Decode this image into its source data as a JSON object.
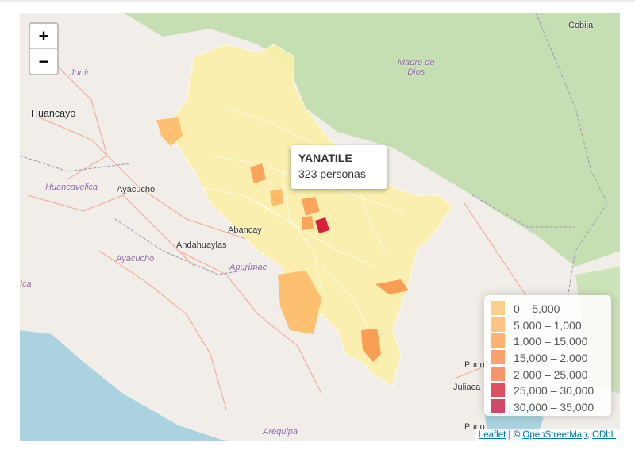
{
  "zoom": {
    "in_label": "+",
    "out_label": "−"
  },
  "places": {
    "cobija": "Cobija",
    "huancayo": "Huancayo",
    "ayacucho_city": "Ayacucho",
    "abancay": "Abancay",
    "andahuaylas": "Andahuaylas",
    "juliaca": "Juliaca",
    "puno": "Puno",
    "puno_city": "Puno"
  },
  "regions": {
    "junin": "Junín",
    "madre_de_dios": "Madre de\nDios",
    "huancavelica": "Huancavelica",
    "ayacucho": "Ayacucho",
    "apurimac": "Apurímac",
    "arequipa": "Arequipa",
    "ica": "Ica"
  },
  "popup": {
    "name": "YANATILE",
    "value": "323 personas"
  },
  "legend": {
    "items": [
      {
        "label": "0 – 5,000",
        "color": "#fec36f"
      },
      {
        "label": "5,000 – 1,000",
        "color": "#feb460"
      },
      {
        "label": "1,000 – 15,000",
        "color": "#fd9e51"
      },
      {
        "label": "15,000 – 2,000",
        "color": "#fb8a48"
      },
      {
        "label": "2,000 – 25,000",
        "color": "#f57a45"
      },
      {
        "label": "25,000 – 30,000",
        "color": "#d8203a"
      },
      {
        "label": "30,000 – 35,000",
        "color": "#c41d46"
      }
    ]
  },
  "attribution": {
    "leaflet": "Leaflet",
    "sep": " | © ",
    "osm": "OpenStreetMap",
    "comma": ", ",
    "odbl": "ODbL"
  },
  "colors": {
    "choropleth_base": "#fbf0a8",
    "forest": "#c6dfb2",
    "sea": "#a8cde0"
  }
}
